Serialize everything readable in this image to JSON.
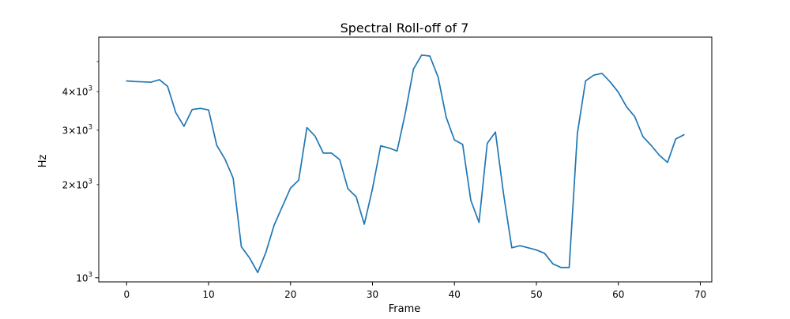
{
  "chart_data": {
    "type": "line",
    "title": "Spectral Roll-off of 7",
    "xlabel": "Frame",
    "ylabel": "Hz",
    "yscale": "log",
    "grid": false,
    "xlim": [
      -3.4,
      71.4
    ],
    "ylim": [
      970,
      6000
    ],
    "x_ticks": [
      0,
      10,
      20,
      30,
      40,
      50,
      60,
      70
    ],
    "y_major_ticks": [
      1000
    ],
    "y_minor_ticks": [
      2000,
      3000,
      4000,
      5000
    ],
    "y_minor_labeled": [
      2000,
      3000,
      4000
    ],
    "line_color": "#1f77b4",
    "series": [
      {
        "x": [
          0,
          1,
          2,
          3,
          4,
          5,
          6,
          7,
          8,
          9,
          10,
          11,
          12,
          13,
          14,
          15,
          16,
          17,
          18,
          19,
          20,
          21,
          22,
          23,
          24,
          25,
          26,
          27,
          28,
          29,
          30,
          31,
          32,
          33,
          34,
          35,
          36,
          37,
          38,
          39,
          40,
          41,
          42,
          43,
          44,
          45,
          46,
          47,
          48,
          49,
          50,
          51,
          52,
          53,
          54,
          55,
          56,
          57,
          58,
          59,
          60,
          61,
          62,
          63,
          64,
          65,
          66,
          67,
          68
        ],
        "y": [
          4330,
          4310,
          4300,
          4290,
          4370,
          4160,
          3420,
          3090,
          3500,
          3530,
          3490,
          2680,
          2420,
          2100,
          1260,
          1160,
          1040,
          1210,
          1480,
          1700,
          1950,
          2070,
          3060,
          2870,
          2530,
          2530,
          2410,
          1940,
          1830,
          1490,
          1940,
          2670,
          2630,
          2570,
          3400,
          4730,
          5250,
          5210,
          4460,
          3300,
          2790,
          2700,
          1780,
          1510,
          2720,
          2960,
          1860,
          1250,
          1270,
          1250,
          1230,
          1200,
          1110,
          1080,
          1080,
          2930,
          4330,
          4520,
          4580,
          4300,
          3980,
          3570,
          3320,
          2860,
          2680,
          2490,
          2360,
          2810,
          2900
        ]
      }
    ]
  }
}
